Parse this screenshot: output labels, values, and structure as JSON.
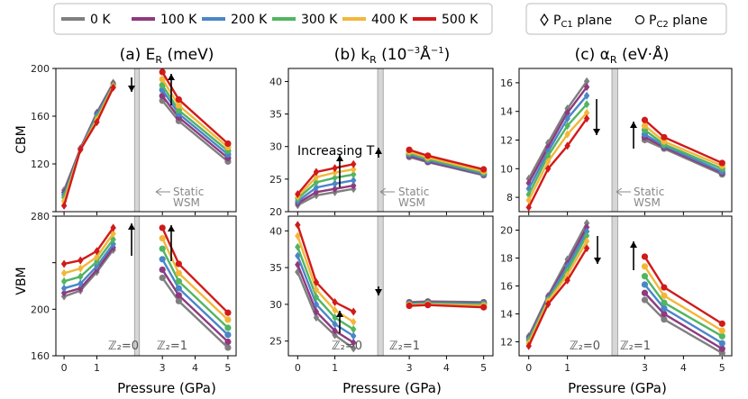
{
  "chart_data": {
    "type": "line",
    "temperatures": [
      "0 K",
      "100 K",
      "200 K",
      "300 K",
      "400 K",
      "500 K"
    ],
    "colors": [
      "#7f7f7f",
      "#8e3a7f",
      "#4a86c8",
      "#52b560",
      "#f2b73a",
      "#d11a1a"
    ],
    "plane_legend": {
      "c1": "P",
      "c1_sub": "C1",
      "c1_suffix": " plane",
      "c2": "P",
      "c2_sub": "C2",
      "c2_suffix": " plane"
    },
    "columns": [
      {
        "title_prefix": "(a) E",
        "title_sub": "R",
        "title_unit": " (meV)"
      },
      {
        "title_prefix": "(b) k",
        "title_sub": "R",
        "title_unit": " (10",
        "title_sup": "−3",
        "title_tail": "Å",
        "title_sup2": "−1",
        "title_end": ")"
      },
      {
        "title_prefix": "(c) α",
        "title_sub": "R",
        "title_unit": " (eV·Å)"
      }
    ],
    "xlabel": "Pressure (GPa)",
    "row_labels": [
      "CBM",
      "VBM"
    ],
    "xticks": [
      0,
      1,
      2,
      3,
      4,
      5
    ],
    "xlim": [
      -0.25,
      5.25
    ],
    "static_band": [
      2.15,
      2.3
    ],
    "static_label_1": "Static",
    "static_label_2": "WSM",
    "z2_left": "ℤ₂=0",
    "z2_right": "ℤ₂=1",
    "increasing_T": "Increasing T",
    "x_left": [
      0,
      0.5,
      1,
      1.5
    ],
    "x_right": [
      3,
      3.5,
      5
    ],
    "panels": [
      {
        "id": "a-cbm",
        "ylim": [
          80,
          200
        ],
        "yticks": [
          80,
          120,
          160,
          200
        ],
        "ytick_labels": [
          "",
          "120",
          "160",
          "200"
        ],
        "left": [
          [
            98,
            133,
            163,
            188
          ],
          [
            96,
            133,
            162,
            187
          ],
          [
            94,
            132,
            161,
            186
          ],
          [
            92,
            132,
            159,
            186
          ],
          [
            89,
            132,
            157,
            185
          ],
          [
            85,
            132,
            155,
            184
          ]
        ],
        "right": [
          [
            173,
            156,
            122
          ],
          [
            177,
            159,
            125
          ],
          [
            182,
            162,
            128
          ],
          [
            186,
            165,
            131
          ],
          [
            191,
            169,
            134
          ],
          [
            197,
            174,
            137
          ]
        ]
      },
      {
        "id": "a-vbm",
        "ylim": [
          160,
          280
        ],
        "yticks": [
          160,
          200,
          240,
          280
        ],
        "ytick_labels": [
          "160",
          "200",
          "",
          "280"
        ],
        "left": [
          [
            211,
            216,
            232,
            251
          ],
          [
            214,
            218,
            234,
            253
          ],
          [
            218,
            222,
            237,
            256
          ],
          [
            224,
            228,
            241,
            260
          ],
          [
            231,
            235,
            245,
            265
          ],
          [
            239,
            242,
            250,
            270
          ]
        ],
        "right": [
          [
            227,
            207,
            167
          ],
          [
            234,
            212,
            172
          ],
          [
            243,
            218,
            178
          ],
          [
            252,
            224,
            184
          ],
          [
            261,
            231,
            191
          ],
          [
            270,
            239,
            197
          ]
        ]
      },
      {
        "id": "b-cbm",
        "ylim": [
          20,
          42
        ],
        "yticks": [
          20,
          25,
          30,
          35,
          40
        ],
        "ytick_labels": [
          "20",
          "25",
          "30",
          "35",
          "40"
        ],
        "left": [
          [
            21.0,
            22.5,
            23.0,
            23.5
          ],
          [
            21.3,
            23.0,
            23.5,
            24.0
          ],
          [
            21.6,
            23.7,
            24.3,
            24.8
          ],
          [
            22.0,
            24.5,
            25.2,
            25.7
          ],
          [
            22.3,
            25.3,
            26.0,
            26.5
          ],
          [
            22.7,
            26.1,
            26.7,
            27.3
          ]
        ],
        "right": [
          [
            28.4,
            27.6,
            25.6
          ],
          [
            28.6,
            27.7,
            25.7
          ],
          [
            28.8,
            27.9,
            25.8
          ],
          [
            29.0,
            28.1,
            26.0
          ],
          [
            29.2,
            28.3,
            26.2
          ],
          [
            29.5,
            28.6,
            26.5
          ]
        ]
      },
      {
        "id": "b-vbm",
        "ylim": [
          23,
          42
        ],
        "yticks": [
          25,
          30,
          35,
          40
        ],
        "ytick_labels": [
          "25",
          "30",
          "35",
          "40"
        ],
        "left": [
          [
            34.4,
            28.2,
            25.8,
            24.0
          ],
          [
            35.4,
            29.0,
            26.4,
            24.8
          ],
          [
            36.6,
            30.0,
            27.3,
            25.7
          ],
          [
            37.8,
            31.0,
            28.2,
            26.6
          ],
          [
            39.3,
            32.0,
            29.2,
            27.6
          ],
          [
            40.8,
            33.0,
            30.3,
            29.0
          ]
        ],
        "right": [
          [
            30.3,
            30.4,
            30.3
          ],
          [
            30.2,
            30.3,
            30.2
          ],
          [
            30.1,
            30.2,
            30.1
          ],
          [
            30.0,
            30.1,
            30.0
          ],
          [
            29.9,
            30.0,
            29.8
          ],
          [
            29.8,
            29.9,
            29.6
          ]
        ]
      },
      {
        "id": "c-cbm",
        "ylim": [
          7,
          17
        ],
        "yticks": [
          8,
          10,
          12,
          14,
          16
        ],
        "ytick_labels": [
          "8",
          "10",
          "12",
          "14",
          "16"
        ],
        "left": [
          [
            9.3,
            11.8,
            14.2,
            16.1
          ],
          [
            9.0,
            11.5,
            13.9,
            15.7
          ],
          [
            8.6,
            11.2,
            13.5,
            15.1
          ],
          [
            8.2,
            10.9,
            13.0,
            14.5
          ],
          [
            7.8,
            10.5,
            12.4,
            13.9
          ],
          [
            7.3,
            10.0,
            11.6,
            13.5
          ]
        ],
        "right": [
          [
            12.0,
            11.4,
            9.6
          ],
          [
            12.2,
            11.5,
            9.7
          ],
          [
            12.4,
            11.6,
            9.8
          ],
          [
            12.7,
            11.7,
            10.0
          ],
          [
            13.0,
            11.9,
            10.2
          ],
          [
            13.4,
            12.2,
            10.4
          ]
        ]
      },
      {
        "id": "c-vbm",
        "ylim": [
          11,
          21
        ],
        "yticks": [
          12,
          14,
          16,
          18,
          20
        ],
        "ytick_labels": [
          "12",
          "14",
          "16",
          "18",
          "20"
        ],
        "left": [
          [
            12.4,
            15.3,
            17.9,
            20.5
          ],
          [
            12.3,
            15.2,
            17.6,
            20.2
          ],
          [
            12.2,
            15.1,
            17.4,
            19.9
          ],
          [
            12.1,
            15.0,
            17.1,
            19.6
          ],
          [
            11.9,
            14.9,
            16.8,
            19.2
          ],
          [
            11.7,
            14.7,
            16.4,
            18.7
          ]
        ],
        "right": [
          [
            15.0,
            13.6,
            11.2
          ],
          [
            15.5,
            14.0,
            11.5
          ],
          [
            16.1,
            14.4,
            11.9
          ],
          [
            16.7,
            14.8,
            12.4
          ],
          [
            17.4,
            15.3,
            12.8
          ],
          [
            18.1,
            15.9,
            13.3
          ]
        ]
      }
    ]
  }
}
